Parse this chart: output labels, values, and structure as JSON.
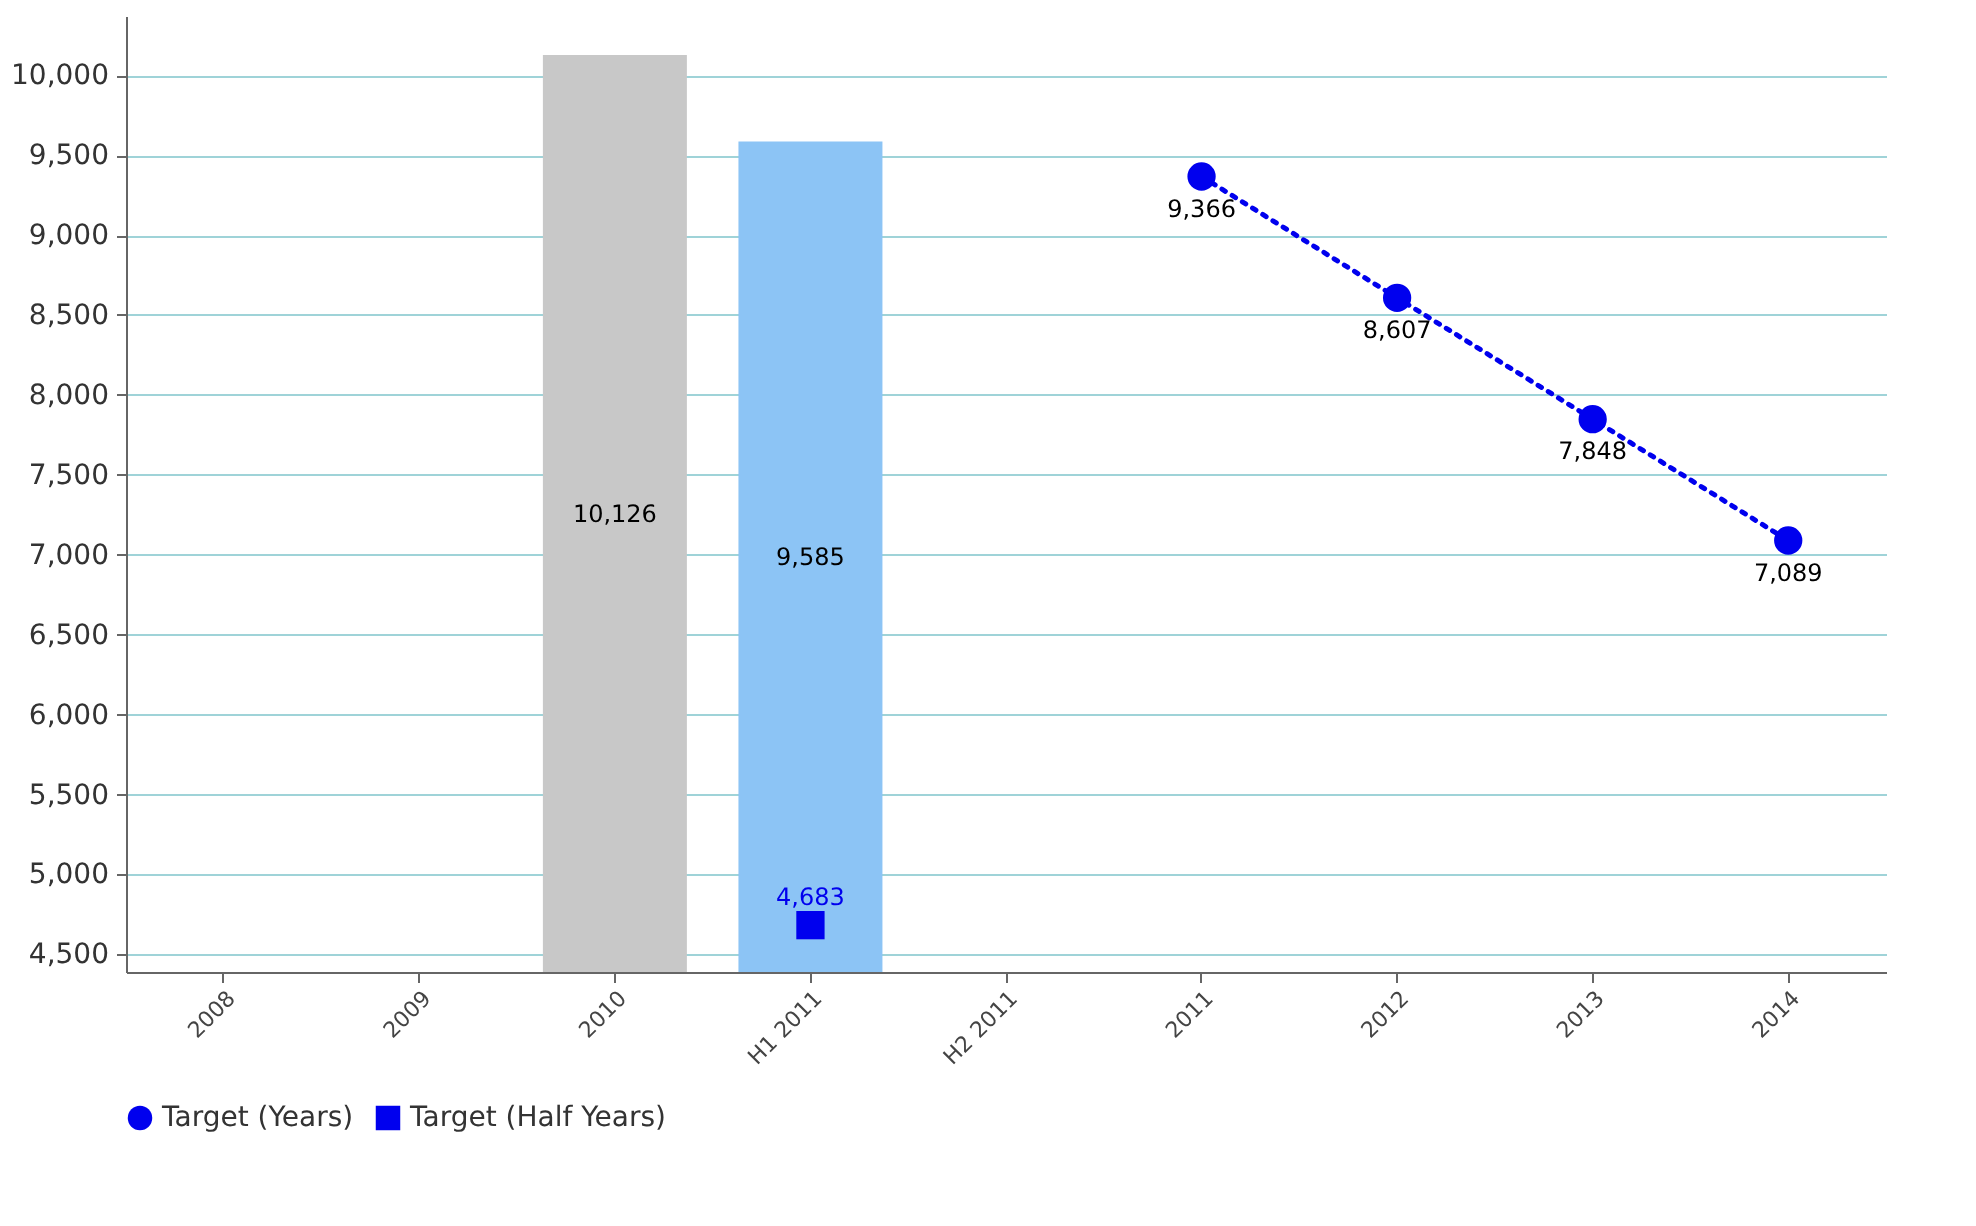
{
  "chart_data": {
    "type": "bar",
    "categories": [
      "2008",
      "2009",
      "2010",
      "H1 2011",
      "H2 2011",
      "2011",
      "2012",
      "2013",
      "2014"
    ],
    "series": [
      {
        "colors": [
          null,
          null,
          "#c8c8c8",
          "#8cc4f5",
          null,
          null,
          null,
          null,
          null
        ],
        "values": [
          null,
          null,
          10126,
          9585,
          null,
          null,
          null,
          null,
          null
        ],
        "value_labels": [
          null,
          null,
          "10,126",
          "9,585",
          null,
          null,
          null,
          null,
          null
        ]
      },
      {
        "type": "line",
        "name": "Target (Years)",
        "color": "#0000ee",
        "marker": "circle",
        "line_style": "dotted",
        "values": [
          null,
          null,
          null,
          null,
          null,
          9366,
          8607,
          7848,
          7089
        ],
        "value_labels": [
          null,
          null,
          null,
          null,
          null,
          "9,366",
          "8,607",
          "7,848",
          "7,089"
        ]
      },
      {
        "type": "scatter",
        "name": "Target (Half Years)",
        "color": "#0000ee",
        "marker": "square",
        "values": [
          null,
          null,
          null,
          4683,
          null,
          null,
          null,
          null,
          null
        ],
        "value_labels": [
          null,
          null,
          null,
          "4,683",
          null,
          null,
          null,
          null,
          null
        ]
      }
    ],
    "ylim": [
      4390,
      10370
    ],
    "yticks": [
      {
        "value": 4500,
        "label": "4,500"
      },
      {
        "value": 5000,
        "label": "5,000"
      },
      {
        "value": 5500,
        "label": "5,500"
      },
      {
        "value": 6000,
        "label": "6,000"
      },
      {
        "value": 6500,
        "label": "6,500"
      },
      {
        "value": 7000,
        "label": "7,000"
      },
      {
        "value": 7500,
        "label": "7,500"
      },
      {
        "value": 8000,
        "label": "8,000"
      },
      {
        "value": 8500,
        "label": "8,500"
      },
      {
        "value": 9000,
        "label": "9,000"
      },
      {
        "value": 9500,
        "label": "9,500"
      },
      {
        "value": 10000,
        "label": "10,000"
      }
    ],
    "grid": "y",
    "legend": "bottom"
  }
}
